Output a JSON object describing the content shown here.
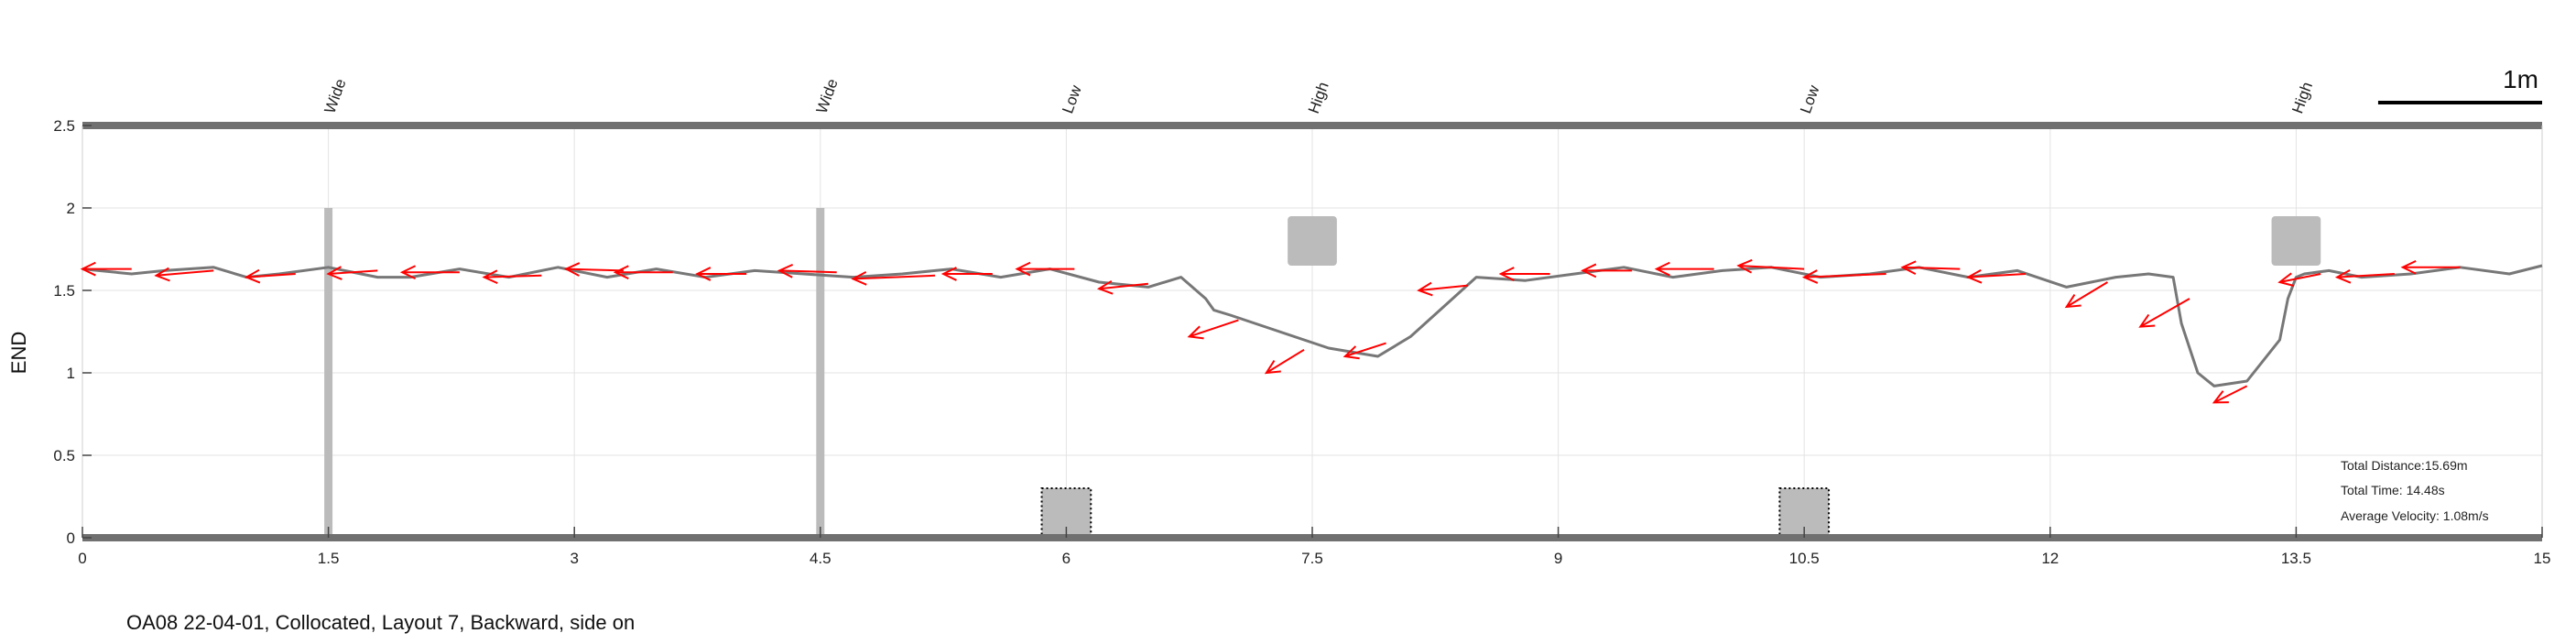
{
  "chart_data": {
    "type": "line",
    "ylabel": "END",
    "xlim": [
      0,
      15
    ],
    "ylim": [
      0,
      2.5
    ],
    "x_ticks": [
      0,
      1.5,
      3,
      4.5,
      6,
      7.5,
      9,
      10.5,
      12,
      13.5,
      15
    ],
    "x_tick_labels": [
      "0",
      "1.5",
      "3",
      "4.5",
      "6",
      "7.5",
      "9",
      "10.5",
      "12",
      "13.5",
      "15"
    ],
    "y_ticks": [
      0,
      0.5,
      1,
      1.5,
      2,
      2.5
    ],
    "y_tick_labels": [
      "0",
      "0.5",
      "1",
      "1.5",
      "2",
      "2.5"
    ],
    "grid": true,
    "path": {
      "color": "#777777",
      "x": [
        0.0,
        0.3,
        0.5,
        0.8,
        1.0,
        1.2,
        1.5,
        1.8,
        2.0,
        2.3,
        2.6,
        2.9,
        3.2,
        3.5,
        3.8,
        4.1,
        4.4,
        4.7,
        5.0,
        5.3,
        5.6,
        5.9,
        6.2,
        6.5,
        6.7,
        6.85,
        6.9,
        7.0,
        7.3,
        7.6,
        7.9,
        8.1,
        8.3,
        8.5,
        8.8,
        9.1,
        9.4,
        9.7,
        10.0,
        10.3,
        10.6,
        10.9,
        11.2,
        11.5,
        11.8,
        12.1,
        12.4,
        12.6,
        12.75,
        12.8,
        12.9,
        13.0,
        13.2,
        13.4,
        13.45,
        13.5,
        13.55,
        13.7,
        13.9,
        14.2,
        14.5,
        14.8,
        15.0
      ],
      "y": [
        1.63,
        1.6,
        1.62,
        1.64,
        1.58,
        1.6,
        1.64,
        1.58,
        1.58,
        1.63,
        1.58,
        1.64,
        1.58,
        1.63,
        1.58,
        1.62,
        1.6,
        1.58,
        1.6,
        1.63,
        1.58,
        1.63,
        1.55,
        1.52,
        1.58,
        1.45,
        1.38,
        1.35,
        1.25,
        1.15,
        1.1,
        1.22,
        1.4,
        1.58,
        1.56,
        1.6,
        1.64,
        1.58,
        1.62,
        1.64,
        1.58,
        1.6,
        1.64,
        1.58,
        1.62,
        1.52,
        1.58,
        1.6,
        1.58,
        1.3,
        1.0,
        0.92,
        0.95,
        1.2,
        1.45,
        1.58,
        1.6,
        1.62,
        1.58,
        1.6,
        1.64,
        1.6,
        1.65
      ]
    },
    "arrows": {
      "color": "#ff0000",
      "items": [
        {
          "x": 0.3,
          "y": 1.63,
          "dx": -0.3,
          "dy": 0.0
        },
        {
          "x": 0.8,
          "y": 1.62,
          "dx": -0.35,
          "dy": -0.03
        },
        {
          "x": 1.3,
          "y": 1.6,
          "dx": -0.3,
          "dy": -0.02
        },
        {
          "x": 1.8,
          "y": 1.62,
          "dx": -0.3,
          "dy": -0.02
        },
        {
          "x": 2.3,
          "y": 1.61,
          "dx": -0.35,
          "dy": 0.0
        },
        {
          "x": 2.8,
          "y": 1.59,
          "dx": -0.35,
          "dy": -0.01
        },
        {
          "x": 3.3,
          "y": 1.62,
          "dx": -0.35,
          "dy": 0.01
        },
        {
          "x": 3.6,
          "y": 1.61,
          "dx": -0.35,
          "dy": 0.0
        },
        {
          "x": 4.05,
          "y": 1.6,
          "dx": -0.3,
          "dy": 0.0
        },
        {
          "x": 4.6,
          "y": 1.61,
          "dx": -0.35,
          "dy": 0.01
        },
        {
          "x": 5.2,
          "y": 1.59,
          "dx": -0.5,
          "dy": -0.02
        },
        {
          "x": 5.55,
          "y": 1.6,
          "dx": -0.3,
          "dy": 0.0
        },
        {
          "x": 6.05,
          "y": 1.63,
          "dx": -0.35,
          "dy": 0.0
        },
        {
          "x": 6.5,
          "y": 1.54,
          "dx": -0.3,
          "dy": -0.03
        },
        {
          "x": 7.05,
          "y": 1.32,
          "dx": -0.3,
          "dy": -0.1
        },
        {
          "x": 7.45,
          "y": 1.14,
          "dx": -0.23,
          "dy": -0.14
        },
        {
          "x": 7.95,
          "y": 1.18,
          "dx": -0.25,
          "dy": -0.08
        },
        {
          "x": 8.45,
          "y": 1.53,
          "dx": -0.3,
          "dy": -0.03
        },
        {
          "x": 8.95,
          "y": 1.6,
          "dx": -0.3,
          "dy": 0.0
        },
        {
          "x": 9.45,
          "y": 1.62,
          "dx": -0.3,
          "dy": 0.0
        },
        {
          "x": 9.95,
          "y": 1.63,
          "dx": -0.35,
          "dy": 0.0
        },
        {
          "x": 10.5,
          "y": 1.63,
          "dx": -0.4,
          "dy": 0.02
        },
        {
          "x": 11.0,
          "y": 1.6,
          "dx": -0.5,
          "dy": -0.02
        },
        {
          "x": 11.45,
          "y": 1.63,
          "dx": -0.35,
          "dy": 0.01
        },
        {
          "x": 11.85,
          "y": 1.6,
          "dx": -0.35,
          "dy": -0.02
        },
        {
          "x": 12.35,
          "y": 1.55,
          "dx": -0.25,
          "dy": -0.15
        },
        {
          "x": 12.85,
          "y": 1.45,
          "dx": -0.3,
          "dy": -0.17
        },
        {
          "x": 13.2,
          "y": 0.92,
          "dx": -0.2,
          "dy": -0.1
        },
        {
          "x": 13.65,
          "y": 1.6,
          "dx": -0.25,
          "dy": -0.05
        },
        {
          "x": 14.1,
          "y": 1.6,
          "dx": -0.35,
          "dy": -0.02
        },
        {
          "x": 14.5,
          "y": 1.64,
          "dx": -0.35,
          "dy": 0.0
        }
      ]
    },
    "obstacles": [
      {
        "type": "bar",
        "x_center": 1.5,
        "width": 0.05,
        "y_bottom": 0,
        "y_top": 2.0,
        "color": "#bbbbbb"
      },
      {
        "type": "bar",
        "x_center": 4.5,
        "width": 0.05,
        "y_bottom": 0,
        "y_top": 2.0,
        "color": "#bbbbbb"
      },
      {
        "type": "box",
        "x_center": 6.0,
        "width": 0.3,
        "y_bottom": 0,
        "y_top": 0.3,
        "color": "#bbbbbb",
        "dotted": true
      },
      {
        "type": "box",
        "x_center": 10.5,
        "width": 0.3,
        "y_bottom": 0,
        "y_top": 0.3,
        "color": "#bbbbbb",
        "dotted": true
      },
      {
        "type": "box",
        "x_center": 7.5,
        "width": 0.3,
        "y_bottom": 1.65,
        "y_top": 1.95,
        "color": "#bbbbbb",
        "dotted": false
      },
      {
        "type": "box",
        "x_center": 13.5,
        "width": 0.3,
        "y_bottom": 1.65,
        "y_top": 1.95,
        "color": "#bbbbbb",
        "dotted": false
      }
    ],
    "obstacle_labels": [
      {
        "x": 1.5,
        "text": "Wide"
      },
      {
        "x": 4.5,
        "text": "Wide"
      },
      {
        "x": 6.0,
        "text": "Low"
      },
      {
        "x": 7.5,
        "text": "High"
      },
      {
        "x": 10.5,
        "text": "Low"
      },
      {
        "x": 13.5,
        "text": "High"
      }
    ],
    "scale_bar": {
      "label": "1m",
      "length": 1.0
    },
    "stats": [
      "Total Distance:15.69m",
      "Total Time: 14.48s",
      "Average Velocity: 1.08m/s"
    ],
    "caption": "OA08 22-04-01, Collocated, Layout 7, Backward, side on"
  }
}
